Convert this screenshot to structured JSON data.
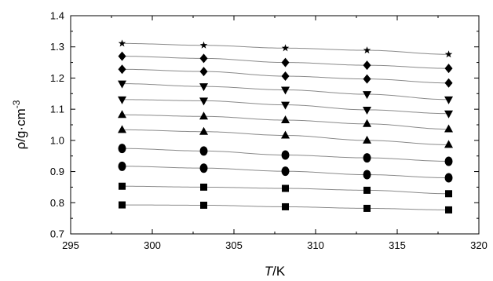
{
  "chart_data": {
    "type": "scatter",
    "xlabel_italic": "T",
    "xlabel_unit": "/K",
    "ylabel_prefix": "ρ/g·cm",
    "ylabel_exp": "-3",
    "xlim": [
      295,
      320
    ],
    "ylim": [
      0.7,
      1.4
    ],
    "x_ticks": [
      295,
      300,
      305,
      310,
      315,
      320
    ],
    "y_ticks": [
      0.7,
      0.8,
      0.9,
      1.0,
      1.1,
      1.2,
      1.3,
      1.4
    ],
    "x_tick_labels": [
      "295",
      "300",
      "305",
      "310",
      "315",
      "320"
    ],
    "y_tick_labels": [
      "0.7",
      "0.8",
      "0.9",
      "1.0",
      "1.1",
      "1.2",
      "1.3",
      "1.4"
    ],
    "grid": false,
    "x": [
      298.15,
      303.15,
      308.15,
      313.15,
      318.15
    ],
    "series": [
      {
        "marker": "square",
        "values": [
          0.793,
          0.792,
          0.787,
          0.782,
          0.777
        ]
      },
      {
        "marker": "square",
        "values": [
          0.853,
          0.85,
          0.846,
          0.84,
          0.829
        ]
      },
      {
        "marker": "circle",
        "values": [
          0.917,
          0.911,
          0.901,
          0.89,
          0.88
        ]
      },
      {
        "marker": "circle",
        "values": [
          0.974,
          0.966,
          0.953,
          0.944,
          0.933
        ]
      },
      {
        "marker": "triangle-up",
        "values": [
          1.034,
          1.028,
          1.016,
          1.0,
          0.986
        ]
      },
      {
        "marker": "triangle-up",
        "values": [
          1.082,
          1.077,
          1.065,
          1.053,
          1.036
        ]
      },
      {
        "marker": "triangle-down",
        "values": [
          1.131,
          1.127,
          1.114,
          1.098,
          1.086
        ]
      },
      {
        "marker": "triangle-down",
        "values": [
          1.182,
          1.173,
          1.162,
          1.148,
          1.131
        ]
      },
      {
        "marker": "diamond",
        "values": [
          1.228,
          1.221,
          1.206,
          1.197,
          1.184
        ]
      },
      {
        "marker": "diamond",
        "values": [
          1.27,
          1.263,
          1.25,
          1.241,
          1.231
        ]
      },
      {
        "marker": "star",
        "values": [
          1.311,
          1.305,
          1.296,
          1.289,
          1.276
        ]
      }
    ]
  }
}
